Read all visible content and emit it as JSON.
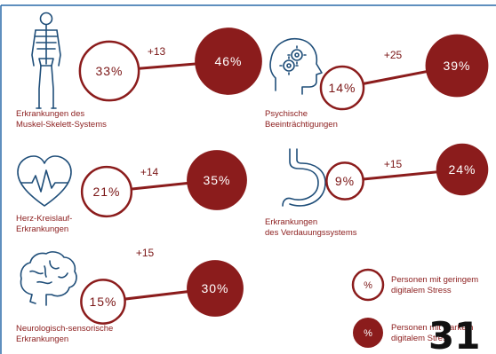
{
  "chart_data": {
    "type": "dumbbell",
    "unit": "%",
    "series": [
      {
        "name": "Personen mit geringem digitalem Stress",
        "style": "outline"
      },
      {
        "name": "Personen mit starkem digitalem Stress",
        "style": "filled"
      }
    ],
    "categories": [
      {
        "label_lines": [
          "Erkrankungen des",
          "Muskel-Skelett-Systems"
        ],
        "icon": "skeleton-icon",
        "low": 33,
        "high": 46,
        "diff": "+13"
      },
      {
        "label_lines": [
          "Psychische",
          "Beeinträchtigungen"
        ],
        "icon": "head-gears-icon",
        "low": 14,
        "high": 39,
        "diff": "+25"
      },
      {
        "label_lines": [
          "Herz-Kreislauf-",
          "Erkrankungen"
        ],
        "icon": "heart-pulse-icon",
        "low": 21,
        "high": 35,
        "diff": "+14"
      },
      {
        "label_lines": [
          "Erkrankungen",
          "des Verdauungssystems"
        ],
        "icon": "stomach-icon",
        "low": 9,
        "high": 24,
        "diff": "+15"
      },
      {
        "label_lines": [
          "Neurologisch-sensorische",
          "Erkrankungen"
        ],
        "icon": "brain-icon",
        "low": 15,
        "high": 30,
        "diff": "+15"
      }
    ]
  },
  "legend": {
    "symbol": "%",
    "low_lines": [
      "Personen mit geringem",
      "digitalem Stress"
    ],
    "high_lines": [
      "Personen mit starkem",
      "digitalem Stress"
    ]
  },
  "page_number": "31",
  "colors": {
    "accent": "#8b1c1c",
    "dark_accent": "#7a1515",
    "icon": "#1f4e79",
    "frame": "#2a6aa8"
  }
}
